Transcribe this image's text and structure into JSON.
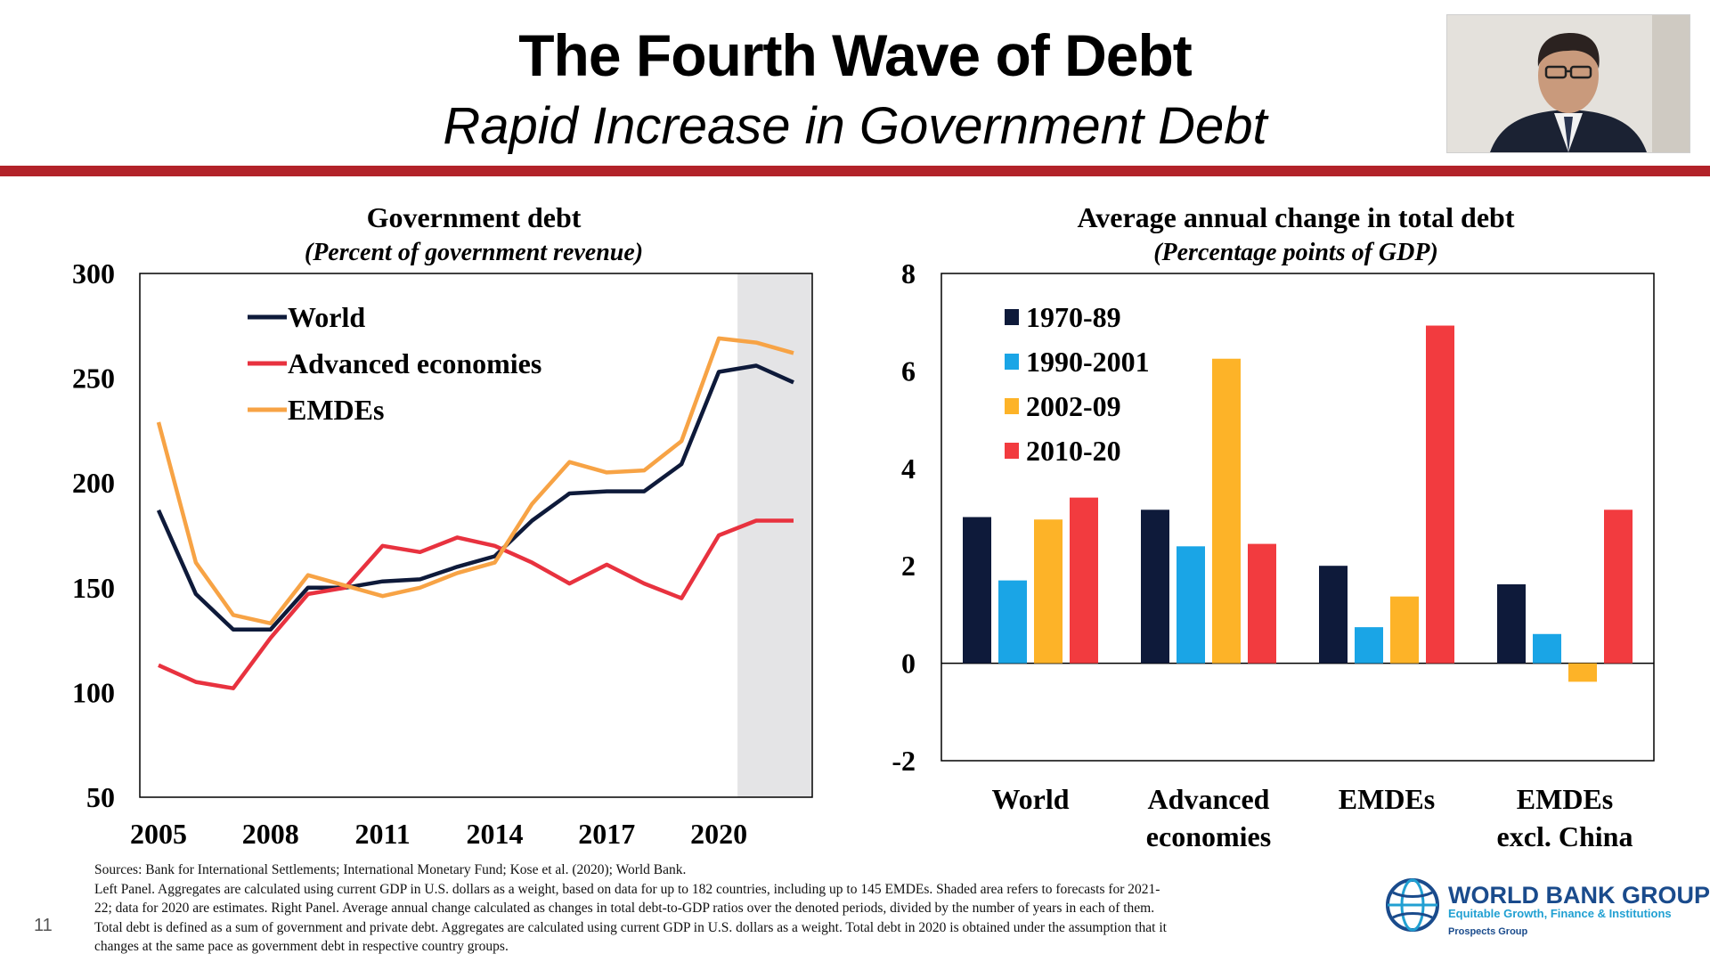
{
  "slide": {
    "title": "The Fourth Wave of Debt",
    "subtitle": "Rapid Increase in Government Debt",
    "slide_number": "11",
    "accent_color": "#b22229"
  },
  "footnotes": [
    "Sources: Bank for International Settlements; International Monetary Fund; Kose et al. (2020); World Bank.",
    "Left Panel. Aggregates are calculated using current GDP in U.S. dollars as a weight, based on data for up to 182 countries, including up to 145 EMDEs. Shaded area refers to forecasts for 2021-",
    "22; data for 2020 are estimates. Right Panel. Average annual change calculated as changes in total debt-to-GDP ratios over the denoted periods, divided by the number of years in each of them.",
    "Total debt is defined as a sum of government and private debt. Aggregates are calculated using current GDP in U.S. dollars as a weight. Total debt in 2020 is obtained under the assumption that it",
    "changes at the same pace as government debt in respective country groups."
  ],
  "logo": {
    "name": "WORLD BANK GROUP",
    "tagline": "Equitable Growth, Finance & Institutions",
    "group": "Prospects Group"
  },
  "chart_data": [
    {
      "type": "line",
      "title": "Government debt",
      "subtitle": "(Percent of government revenue)",
      "xlabel": "",
      "ylabel": "",
      "ylim": [
        50,
        300
      ],
      "yticks": [
        50,
        100,
        150,
        200,
        250,
        300
      ],
      "xlim": [
        2004.5,
        2022.5
      ],
      "xticks": [
        2005,
        2008,
        2011,
        2014,
        2017,
        2020
      ],
      "shaded_forecast": [
        2020.5,
        2022.5
      ],
      "legend_position": "top-left",
      "x": [
        2005,
        2006,
        2007,
        2008,
        2009,
        2010,
        2011,
        2012,
        2013,
        2014,
        2015,
        2016,
        2017,
        2018,
        2019,
        2020,
        2021,
        2022
      ],
      "series": [
        {
          "name": "World",
          "color": "#0e1a3a",
          "values": [
            187,
            147,
            130,
            130,
            150,
            150,
            153,
            154,
            160,
            165,
            182,
            195,
            196,
            196,
            209,
            253,
            256,
            248
          ]
        },
        {
          "name": "Advanced economies",
          "color": "#e8323f",
          "values": [
            113,
            105,
            102,
            126,
            147,
            150,
            170,
            167,
            174,
            170,
            162,
            152,
            161,
            152,
            145,
            175,
            182,
            182
          ]
        },
        {
          "name": "EMDEs",
          "color": "#f7a345",
          "values": [
            229,
            162,
            137,
            133,
            156,
            151,
            146,
            150,
            157,
            162,
            190,
            210,
            205,
            206,
            220,
            269,
            267,
            262
          ]
        }
      ]
    },
    {
      "type": "bar",
      "title": "Average annual change in total debt",
      "subtitle": "(Percentage points of GDP)",
      "ylim": [
        -2,
        8
      ],
      "yticks": [
        -2,
        0,
        2,
        4,
        6,
        8
      ],
      "legend_position": "top-left",
      "categories": [
        [
          "World"
        ],
        [
          "Advanced",
          "economies"
        ],
        [
          "EMDEs"
        ],
        [
          "EMDEs",
          "excl. China"
        ]
      ],
      "series": [
        {
          "name": "1970-89",
          "color": "#0e1a3a",
          "values": [
            3.0,
            3.15,
            2.0,
            1.62
          ]
        },
        {
          "name": "1990-2001",
          "color": "#1aa5e6",
          "values": [
            1.7,
            2.4,
            0.74,
            0.6
          ]
        },
        {
          "name": "2002-09",
          "color": "#fdb328",
          "values": [
            2.95,
            6.25,
            1.37,
            -0.38
          ]
        },
        {
          "name": "2010-20",
          "color": "#f23b3f",
          "values": [
            3.4,
            2.45,
            6.93,
            3.15
          ]
        }
      ]
    }
  ]
}
